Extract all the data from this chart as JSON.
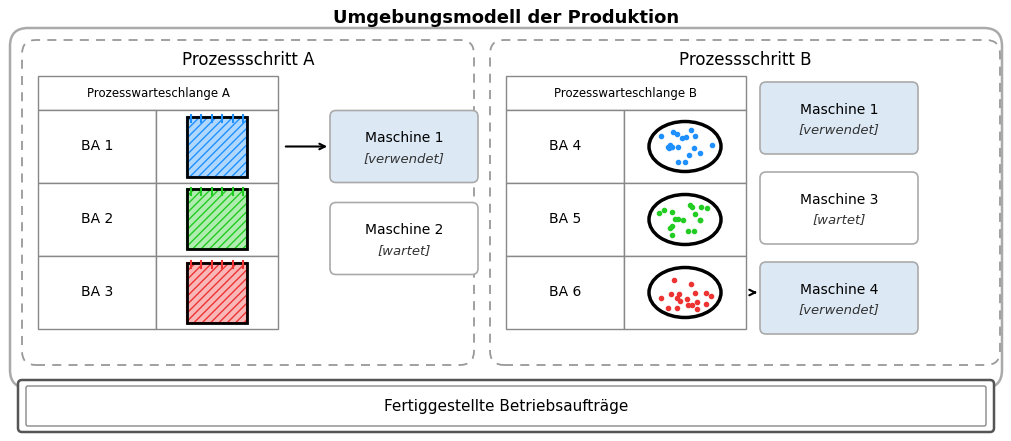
{
  "title": "Umgebungsmodell der Produktion",
  "bg_color": "#ffffff",
  "section_A_label": "Prozessschritt A",
  "section_B_label": "Prozessschritt B",
  "queue_A_label": "Prozesswarteschlange A",
  "queue_B_label": "Prozesswarteschlange B",
  "BA_items_A": [
    "BA 1",
    "BA 2",
    "BA 3"
  ],
  "BA_items_B": [
    "BA 4",
    "BA 5",
    "BA 6"
  ],
  "BA_colors_A": [
    "#1e90ff",
    "#22cc22",
    "#ee3333"
  ],
  "BA_colors_B": [
    "#1e90ff",
    "#22cc22",
    "#ee3333"
  ],
  "machines_A": [
    {
      "label": "Maschine 1",
      "sublabel": "[verwendet]",
      "highlighted": true
    },
    {
      "label": "Maschine 2",
      "sublabel": "[wartet]",
      "highlighted": false
    }
  ],
  "machines_B": [
    {
      "label": "Maschine 1",
      "sublabel": "[verwendet]",
      "highlighted": true
    },
    {
      "label": "Maschine 3",
      "sublabel": "[wartet]",
      "highlighted": false
    },
    {
      "label": "Maschine 4",
      "sublabel": "[verwendet]",
      "highlighted": true
    }
  ],
  "bottom_bar_label": "Fertiggestellte Betriebsaufträge",
  "highlight_color": "#dce9f5",
  "machine_border_color": "#aaaaaa",
  "grid_border_color": "#888888",
  "outer_box_color": "#aaaaaa",
  "dashed_color": "#999999"
}
